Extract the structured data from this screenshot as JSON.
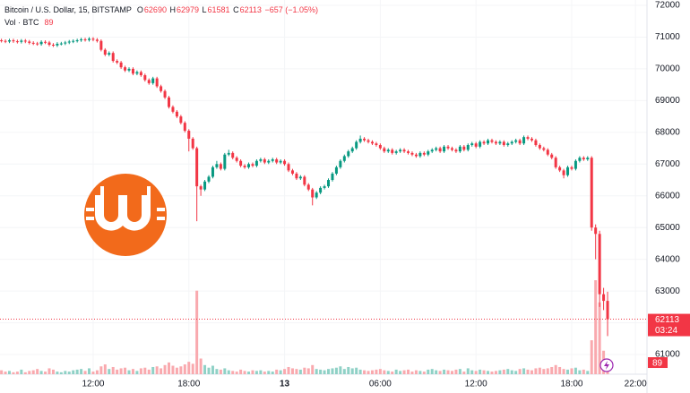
{
  "chart_data": {
    "type": "candlestick",
    "title": "Bitcoin / U.S. Dollar, 15, BITSTAMP",
    "ohlc_labels": [
      "O",
      "H",
      "L",
      "C"
    ],
    "change": "−657 (−1.05%)",
    "volume_label": "Vol · BTC",
    "countdown": "03:24",
    "up_color": "#089981",
    "down_color": "#f23645",
    "xlim": [
      6.16,
      46.72
    ],
    "xticks": [
      {
        "value": 12,
        "label": "12:00"
      },
      {
        "value": 18,
        "label": "18:00"
      },
      {
        "value": 24,
        "label": "13"
      },
      {
        "value": 30,
        "label": "06:00"
      },
      {
        "value": 36,
        "label": "12:00"
      },
      {
        "value": 42,
        "label": "18:00"
      },
      {
        "value": 46,
        "label": "22:00"
      }
    ],
    "ylim": [
      60380,
      72170
    ],
    "yticks": [
      72000,
      71000,
      70000,
      69000,
      68000,
      67000,
      66000,
      65000,
      64000,
      63000,
      62000,
      61000
    ],
    "x": [
      6.25,
      6.5,
      6.75,
      7,
      7.25,
      7.5,
      7.75,
      8,
      8.25,
      8.5,
      8.75,
      9,
      9.25,
      9.5,
      9.75,
      10,
      10.25,
      10.5,
      10.75,
      11,
      11.25,
      11.5,
      11.75,
      12,
      12.25,
      12.5,
      12.75,
      13,
      13.25,
      13.5,
      13.75,
      14,
      14.25,
      14.5,
      14.75,
      15,
      15.25,
      15.5,
      15.75,
      16,
      16.25,
      16.5,
      16.75,
      17,
      17.25,
      17.5,
      17.75,
      18,
      18.25,
      18.5,
      18.75,
      19,
      19.25,
      19.5,
      19.75,
      20,
      20.25,
      20.5,
      20.75,
      21,
      21.25,
      21.5,
      21.75,
      22,
      22.25,
      22.5,
      22.75,
      23,
      23.25,
      23.5,
      23.75,
      24,
      24.25,
      24.5,
      24.75,
      25,
      25.25,
      25.5,
      25.75,
      26,
      26.25,
      26.5,
      26.75,
      27,
      27.25,
      27.5,
      27.75,
      28,
      28.25,
      28.5,
      28.75,
      29,
      29.25,
      29.5,
      29.75,
      30,
      30.25,
      30.5,
      30.75,
      31,
      31.25,
      31.5,
      31.75,
      32,
      32.25,
      32.5,
      32.75,
      33,
      33.25,
      33.5,
      33.75,
      34,
      34.25,
      34.5,
      34.75,
      35,
      35.25,
      35.5,
      35.75,
      36,
      36.25,
      36.5,
      36.75,
      37,
      37.25,
      37.5,
      37.75,
      38,
      38.25,
      38.5,
      38.75,
      39,
      39.25,
      39.5,
      39.75,
      40,
      40.25,
      40.5,
      40.75,
      41,
      41.25,
      41.5,
      41.75,
      42,
      42.25,
      42.5,
      42.75,
      43,
      43.25,
      43.5,
      43.75,
      44,
      44.25
    ],
    "open": [
      70900,
      70880,
      70860,
      70900,
      70870,
      70850,
      70890,
      70860,
      70820,
      70800,
      70780,
      70850,
      70830,
      70760,
      70740,
      70790,
      70800,
      70830,
      70860,
      70880,
      70900,
      70930,
      70910,
      70950,
      70920,
      70880,
      70600,
      70450,
      70500,
      70250,
      70200,
      70050,
      69950,
      70000,
      69850,
      69900,
      69800,
      69650,
      69550,
      69700,
      69450,
      69300,
      69100,
      68800,
      68650,
      68500,
      68300,
      68050,
      67800,
      67500,
      66300,
      66200,
      66450,
      66600,
      66900,
      67000,
      66850,
      67300,
      67350,
      67200,
      67100,
      66950,
      66900,
      67000,
      66950,
      67100,
      67150,
      67050,
      67100,
      67150,
      67050,
      67100,
      67000,
      66800,
      66700,
      66550,
      66600,
      66350,
      66200,
      65950,
      66100,
      66250,
      66300,
      66500,
      66700,
      66900,
      67100,
      67250,
      67400,
      67500,
      67700,
      67800,
      67750,
      67700,
      67650,
      67600,
      67500,
      67400,
      67450,
      67350,
      67400,
      67450,
      67400,
      67350,
      67300,
      67250,
      67350,
      67300,
      67400,
      67450,
      67500,
      67400,
      67550,
      67500,
      67450,
      67400,
      67550,
      67450,
      67600,
      67650,
      67550,
      67700,
      67650,
      67750,
      67700,
      67650,
      67700,
      67600,
      67650,
      67700,
      67750,
      67650,
      67850,
      67800,
      67750,
      67600,
      67500,
      67450,
      67300,
      67200,
      66900,
      66800,
      66650,
      66900,
      66850,
      67100,
      67200,
      67150,
      67200,
      65000,
      64800,
      62900,
      62690
    ],
    "high": [
      70950,
      70930,
      70950,
      70950,
      70920,
      70940,
      70940,
      70910,
      70870,
      70850,
      70900,
      70900,
      70880,
      70810,
      70840,
      70850,
      70880,
      70910,
      70930,
      70950,
      70980,
      70980,
      71000,
      71000,
      70970,
      70930,
      70650,
      70550,
      70550,
      70300,
      70250,
      70100,
      70050,
      70050,
      69950,
      69950,
      69850,
      69700,
      69750,
      69750,
      69500,
      69350,
      69150,
      68850,
      68700,
      68550,
      68350,
      68100,
      67850,
      67550,
      66350,
      66500,
      66650,
      66950,
      67100,
      67050,
      67350,
      67450,
      67400,
      67250,
      67150,
      67000,
      67050,
      67050,
      67150,
      67200,
      67200,
      67150,
      67200,
      67200,
      67150,
      67150,
      67050,
      66850,
      66750,
      66650,
      66650,
      66400,
      66250,
      66150,
      66300,
      66350,
      66550,
      66750,
      66950,
      67150,
      67300,
      67450,
      67550,
      67750,
      67900,
      67850,
      67800,
      67750,
      67700,
      67650,
      67550,
      67500,
      67500,
      67450,
      67500,
      67500,
      67450,
      67400,
      67350,
      67400,
      67400,
      67450,
      67500,
      67550,
      67550,
      67600,
      67600,
      67550,
      67500,
      67600,
      67600,
      67650,
      67700,
      67700,
      67750,
      67750,
      67800,
      67800,
      67750,
      67750,
      67750,
      67700,
      67750,
      67800,
      67800,
      67900,
      67900,
      67850,
      67800,
      67650,
      67550,
      67500,
      67350,
      67250,
      66950,
      66850,
      66950,
      66950,
      67150,
      67250,
      67250,
      67250,
      67250,
      65100,
      64900,
      63100,
      62979
    ],
    "low": [
      70830,
      70810,
      70810,
      70820,
      70800,
      70800,
      70810,
      70770,
      70750,
      70730,
      70730,
      70780,
      70710,
      70690,
      70690,
      70740,
      70750,
      70780,
      70810,
      70830,
      70850,
      70860,
      70860,
      70870,
      70830,
      70550,
      70400,
      70400,
      70200,
      70150,
      70000,
      69900,
      69900,
      69800,
      69800,
      69750,
      69600,
      69500,
      69500,
      69400,
      69250,
      69050,
      68750,
      68600,
      68450,
      68250,
      68000,
      67400,
      67450,
      65200,
      66000,
      66150,
      66400,
      66550,
      66850,
      66800,
      66800,
      67250,
      67150,
      67050,
      66900,
      66850,
      66850,
      66900,
      66900,
      67050,
      67000,
      67000,
      67050,
      67000,
      67000,
      66950,
      66750,
      66650,
      66500,
      66500,
      66300,
      66150,
      65700,
      65900,
      66050,
      66200,
      66250,
      66450,
      66650,
      66850,
      67050,
      67200,
      67350,
      67450,
      67650,
      67700,
      67650,
      67600,
      67550,
      67450,
      67350,
      67350,
      67300,
      67300,
      67350,
      67350,
      67300,
      67250,
      67200,
      67200,
      67250,
      67250,
      67350,
      67400,
      67350,
      67350,
      67450,
      67400,
      67350,
      67350,
      67400,
      67400,
      67550,
      67500,
      67500,
      67600,
      67600,
      67650,
      67600,
      67600,
      67550,
      67550,
      67600,
      67650,
      67600,
      67600,
      67750,
      67700,
      67550,
      67450,
      67400,
      67250,
      67150,
      66850,
      66750,
      66550,
      66600,
      66800,
      66800,
      67050,
      67100,
      67100,
      64900,
      64000,
      62500,
      62400,
      61581
    ],
    "close": [
      70880,
      70860,
      70900,
      70870,
      70850,
      70890,
      70860,
      70820,
      70800,
      70780,
      70850,
      70830,
      70760,
      70740,
      70790,
      70800,
      70830,
      70860,
      70880,
      70900,
      70930,
      70910,
      70950,
      70920,
      70880,
      70600,
      70450,
      70500,
      70250,
      70200,
      70050,
      69950,
      70000,
      69850,
      69900,
      69800,
      69650,
      69550,
      69700,
      69450,
      69300,
      69100,
      68800,
      68650,
      68500,
      68300,
      68050,
      67800,
      67500,
      66300,
      66200,
      66450,
      66600,
      66900,
      67000,
      66850,
      67300,
      67350,
      67200,
      67100,
      66950,
      66900,
      67000,
      66950,
      67100,
      67150,
      67050,
      67100,
      67150,
      67050,
      67100,
      67000,
      66800,
      66700,
      66550,
      66600,
      66350,
      66200,
      65950,
      66100,
      66250,
      66300,
      66500,
      66700,
      66900,
      67100,
      67250,
      67400,
      67500,
      67700,
      67800,
      67750,
      67700,
      67650,
      67600,
      67500,
      67400,
      67450,
      67350,
      67400,
      67450,
      67400,
      67350,
      67300,
      67250,
      67350,
      67300,
      67400,
      67450,
      67500,
      67400,
      67550,
      67500,
      67450,
      67400,
      67550,
      67450,
      67600,
      67650,
      67550,
      67700,
      67650,
      67750,
      67700,
      67650,
      67700,
      67600,
      67650,
      67700,
      67750,
      67650,
      67850,
      67800,
      67750,
      67600,
      67500,
      67450,
      67300,
      67200,
      66900,
      66800,
      66650,
      66900,
      66850,
      67100,
      67200,
      67150,
      67200,
      65000,
      64800,
      62900,
      62690,
      62113
    ],
    "volume": [
      30,
      20,
      25,
      15,
      20,
      35,
      15,
      25,
      30,
      40,
      25,
      20,
      45,
      35,
      20,
      15,
      25,
      20,
      30,
      35,
      40,
      25,
      45,
      20,
      30,
      60,
      75,
      40,
      55,
      35,
      45,
      50,
      30,
      40,
      25,
      45,
      50,
      35,
      55,
      60,
      45,
      70,
      90,
      65,
      50,
      60,
      75,
      95,
      80,
      640,
      120,
      70,
      50,
      65,
      40,
      35,
      45,
      30,
      25,
      20,
      35,
      25,
      20,
      30,
      25,
      30,
      20,
      25,
      20,
      35,
      30,
      40,
      55,
      45,
      40,
      35,
      50,
      45,
      70,
      40,
      35,
      30,
      40,
      45,
      50,
      60,
      40,
      55,
      45,
      50,
      35,
      30,
      25,
      30,
      35,
      40,
      30,
      25,
      20,
      35,
      25,
      30,
      35,
      20,
      30,
      25,
      20,
      35,
      40,
      30,
      25,
      35,
      30,
      25,
      35,
      40,
      20,
      45,
      30,
      25,
      35,
      30,
      25,
      20,
      25,
      30,
      35,
      40,
      30,
      25,
      40,
      45,
      35,
      30,
      45,
      50,
      40,
      45,
      55,
      70,
      55,
      40,
      35,
      45,
      50,
      30,
      35,
      25,
      260,
      720,
      550,
      180,
      89
    ]
  }
}
